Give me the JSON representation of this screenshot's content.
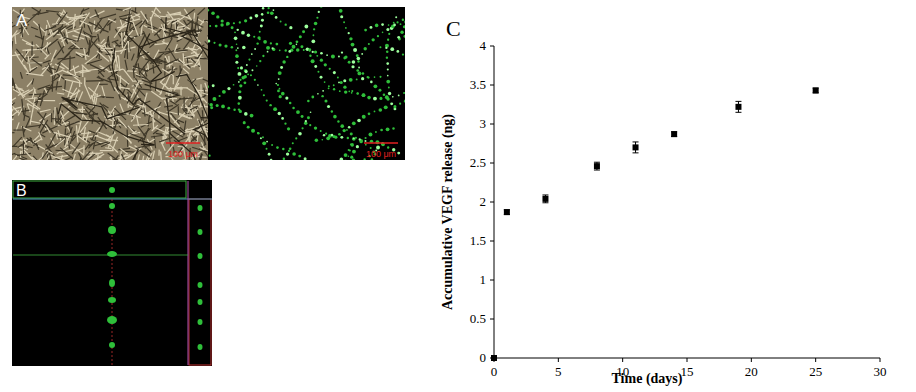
{
  "figure": {
    "panel_labels": [
      "A",
      "B",
      "C"
    ],
    "scale_bars": [
      "100 μm",
      "100 μm"
    ]
  },
  "chart_data": {
    "type": "scatter",
    "x_label": "Time (days)",
    "y_label": "Accumulative VEGF release (ng)",
    "x": [
      0,
      1,
      4,
      8,
      11,
      14,
      19,
      25
    ],
    "values": [
      0,
      1.87,
      2.04,
      2.46,
      2.7,
      2.87,
      3.22,
      3.43
    ],
    "errors": [
      0,
      0.03,
      0.05,
      0.05,
      0.07,
      0.03,
      0.07,
      0.03
    ],
    "xlim": [
      0,
      30
    ],
    "xticks": [
      0,
      5,
      10,
      15,
      20,
      25,
      30
    ],
    "ylim": [
      0,
      4
    ],
    "yticks": [
      0,
      0.5,
      1,
      1.5,
      2,
      2.5,
      3,
      3.5,
      4
    ],
    "color": "#000000",
    "marker": "square",
    "grid": false
  }
}
